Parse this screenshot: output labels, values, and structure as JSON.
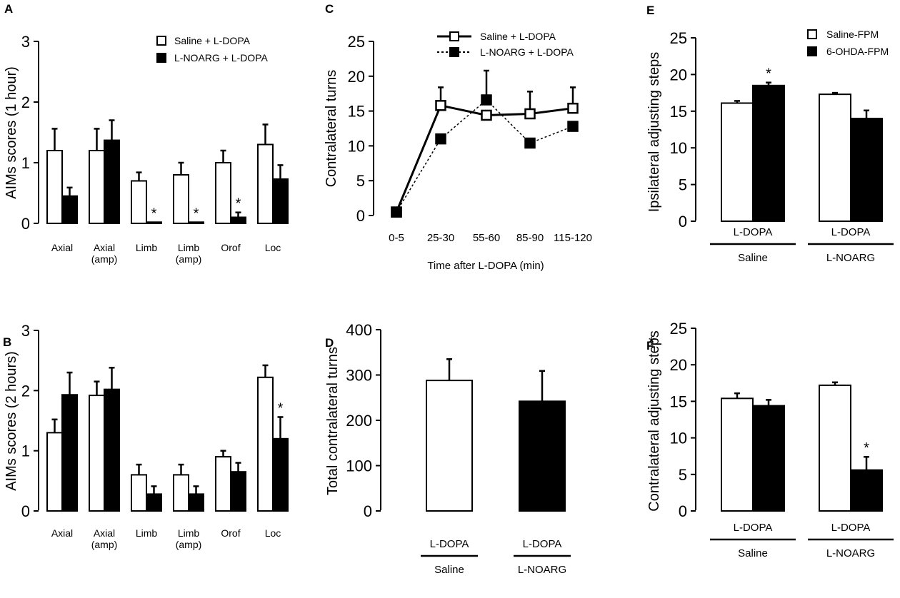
{
  "figure": {
    "panel_labels": [
      "A",
      "B",
      "C",
      "D",
      "E",
      "F"
    ]
  },
  "chart_data": [
    {
      "panel": "A",
      "type": "bar",
      "ylabel": "AIMs scores (1 hour)",
      "ylim": [
        0,
        3
      ],
      "yticks": [
        "0",
        "1",
        "2",
        "3"
      ],
      "categories": [
        "Axial",
        "Axial\n(amp)",
        "Limb",
        "Limb\n(amp)",
        "Orof",
        "Loc"
      ],
      "legend": [
        "Saline + L-DOPA",
        "L-NOARG + L-DOPA"
      ],
      "series": [
        {
          "name": "Saline + L-DOPA",
          "fill": "white",
          "values": [
            1.2,
            1.2,
            0.7,
            0.8,
            1.0,
            1.3
          ],
          "errors": [
            0.36,
            0.36,
            0.14,
            0.2,
            0.2,
            0.33
          ]
        },
        {
          "name": "L-NOARG + L-DOPA",
          "fill": "black",
          "values": [
            0.45,
            1.37,
            0.02,
            0.02,
            0.1,
            0.73
          ],
          "errors": [
            0.14,
            0.33,
            0,
            0,
            0.08,
            0.23
          ]
        }
      ],
      "annotations": [
        {
          "category": 2,
          "series": 1,
          "text": "*"
        },
        {
          "category": 3,
          "series": 1,
          "text": "*"
        },
        {
          "category": 4,
          "series": 1,
          "text": "*"
        }
      ]
    },
    {
      "panel": "B",
      "type": "bar",
      "ylabel": "AIMs scores (2 hours)",
      "ylim": [
        0,
        3
      ],
      "yticks": [
        "0",
        "1",
        "2",
        "3"
      ],
      "categories": [
        "Axial",
        "Axial\n(amp)",
        "Limb",
        "Limb\n(amp)",
        "Orof",
        "Loc"
      ],
      "series": [
        {
          "name": "Saline + L-DOPA",
          "fill": "white",
          "values": [
            1.3,
            1.92,
            0.6,
            0.6,
            0.9,
            2.22
          ],
          "errors": [
            0.22,
            0.23,
            0.17,
            0.17,
            0.1,
            0.2
          ]
        },
        {
          "name": "L-NOARG + L-DOPA",
          "fill": "black",
          "values": [
            1.93,
            2.02,
            0.28,
            0.28,
            0.65,
            1.2
          ],
          "errors": [
            0.37,
            0.36,
            0.13,
            0.13,
            0.15,
            0.36
          ]
        }
      ],
      "annotations": [
        {
          "category": 5,
          "series": 1,
          "text": "*"
        }
      ]
    },
    {
      "panel": "C",
      "type": "line",
      "ylabel": "Contralateral turns",
      "xlabel": "Time after L-DOPA (min)",
      "ylim": [
        0,
        25
      ],
      "yticks": [
        "0",
        "5",
        "10",
        "15",
        "20",
        "25"
      ],
      "x": [
        "0-5",
        "25-30",
        "55-60",
        "85-90",
        "115-120"
      ],
      "legend": [
        "Saline + L-DOPA",
        "L-NOARG + L-DOPA"
      ],
      "series": [
        {
          "name": "Saline + L-DOPA",
          "marker": "open-square",
          "line": "solid",
          "values": [
            0.5,
            15.8,
            14.4,
            14.6,
            15.4
          ],
          "errors": [
            0,
            2.6,
            0,
            3.2,
            3
          ]
        },
        {
          "name": "L-NOARG + L-DOPA",
          "marker": "filled-square",
          "line": "dotted",
          "values": [
            0.5,
            11.0,
            16.6,
            10.4,
            12.8
          ],
          "errors": [
            0,
            0,
            4.2,
            0,
            0
          ]
        }
      ]
    },
    {
      "panel": "D",
      "type": "bar",
      "ylabel": "Total contralateral turns",
      "ylim": [
        0,
        400
      ],
      "yticks": [
        "0",
        "100",
        "200",
        "300",
        "400"
      ],
      "groups": [
        {
          "bar_label": "L-DOPA",
          "group": "Saline"
        },
        {
          "bar_label": "L-DOPA",
          "group": "L-NOARG"
        }
      ],
      "series": [
        {
          "name": "L-DOPA",
          "fills": [
            "white",
            "black"
          ],
          "values": [
            288,
            242
          ],
          "errors": [
            47,
            67
          ]
        }
      ]
    },
    {
      "panel": "E",
      "type": "bar",
      "ylabel": "Ipsilateral adjusting steps",
      "ylim": [
        0,
        25
      ],
      "yticks": [
        "0",
        "5",
        "10",
        "15",
        "20",
        "25"
      ],
      "legend": [
        "Saline-FPM",
        "6-OHDA-FPM"
      ],
      "groups": [
        {
          "bar_label": "L-DOPA",
          "group": "Saline"
        },
        {
          "bar_label": "L-DOPA",
          "group": "L-NOARG"
        }
      ],
      "series": [
        {
          "name": "Saline-FPM",
          "fill": "white",
          "values": [
            16.1,
            17.3
          ],
          "errors": [
            0.3,
            0.2
          ]
        },
        {
          "name": "6-OHDA-FPM",
          "fill": "black",
          "values": [
            18.5,
            14.0
          ],
          "errors": [
            0.4,
            1.1
          ]
        }
      ],
      "annotations": [
        {
          "group": 0,
          "series": 1,
          "text": "*"
        }
      ]
    },
    {
      "panel": "F",
      "type": "bar",
      "ylabel": "Contralateral adjusting steps",
      "ylim": [
        0,
        25
      ],
      "yticks": [
        "0",
        "5",
        "10",
        "15",
        "20",
        "25"
      ],
      "groups": [
        {
          "bar_label": "L-DOPA",
          "group": "Saline"
        },
        {
          "bar_label": "L-DOPA",
          "group": "L-NOARG"
        }
      ],
      "series": [
        {
          "name": "Saline-FPM",
          "fill": "white",
          "values": [
            15.4,
            17.2
          ],
          "errors": [
            0.7,
            0.4
          ]
        },
        {
          "name": "6-OHDA-FPM",
          "fill": "black",
          "values": [
            14.4,
            5.6
          ],
          "errors": [
            0.8,
            1.8
          ]
        }
      ],
      "annotations": [
        {
          "group": 1,
          "series": 1,
          "text": "*"
        }
      ],
      "header_text": "*"
    }
  ]
}
